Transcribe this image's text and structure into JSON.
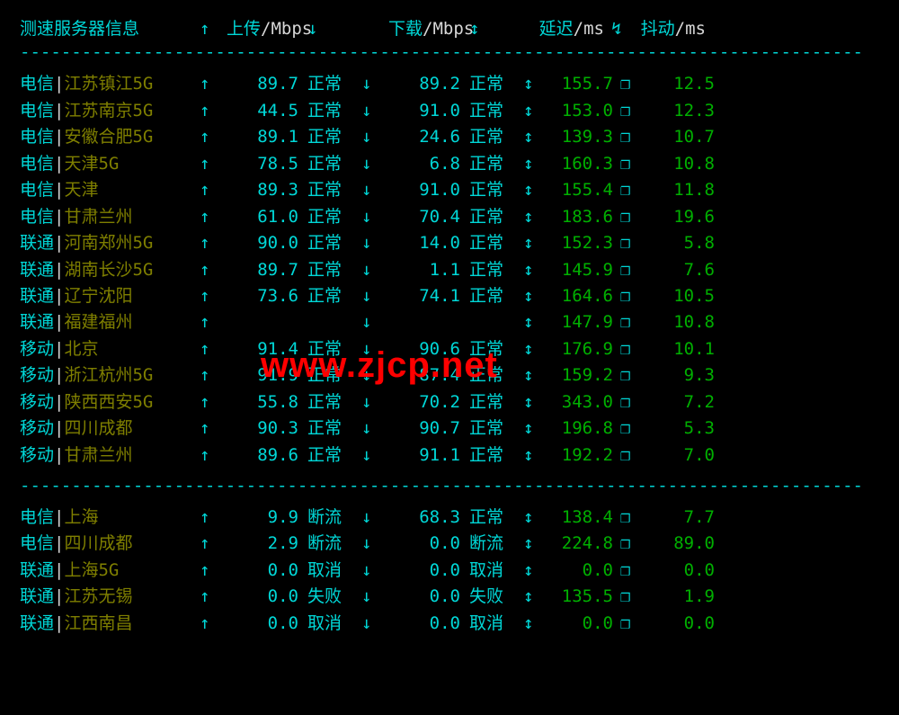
{
  "header": {
    "server_info": "测速服务器信息",
    "upload_label": "上传",
    "upload_unit": "/Mbps",
    "download_label": "下载",
    "download_unit": "/Mbps",
    "latency_label": "延迟",
    "latency_unit": "/ms",
    "jitter_label": "抖动",
    "jitter_unit": "/ms",
    "arrow_up": "↑",
    "arrow_down": "↓",
    "arrow_updown": "↕",
    "arrow_bolt": "↯"
  },
  "divider": "----------------------------------------------------------------------------------",
  "watermark": "www.zjcp.net",
  "rows_main": [
    {
      "isp": "电信",
      "loc": "江苏镇江5G",
      "up": "89.7",
      "ustatus": "正常",
      "down": "89.2",
      "dstatus": "正常",
      "lat": "155.7",
      "sym": "❐",
      "jit": "12.5",
      "gloss": true
    },
    {
      "isp": "电信",
      "loc": "江苏南京5G",
      "up": "44.5",
      "ustatus": "正常",
      "down": "91.0",
      "dstatus": "正常",
      "lat": "153.0",
      "sym": "❐",
      "jit": "12.3",
      "gloss": true
    },
    {
      "isp": "电信",
      "loc": "安徽合肥5G",
      "up": "89.1",
      "ustatus": "正常",
      "down": "24.6",
      "dstatus": "正常",
      "lat": "139.3",
      "sym": "❐",
      "jit": "10.7",
      "gloss": true
    },
    {
      "isp": "电信",
      "loc": "天津5G",
      "up": "78.5",
      "ustatus": "正常",
      "down": "6.8",
      "dstatus": "正常",
      "lat": "160.3",
      "sym": "❐",
      "jit": "10.8",
      "gloss": true
    },
    {
      "isp": "电信",
      "loc": "天津",
      "up": "89.3",
      "ustatus": "正常",
      "down": "91.0",
      "dstatus": "正常",
      "lat": "155.4",
      "sym": "❐",
      "jit": "11.8",
      "gloss": true
    },
    {
      "isp": "电信",
      "loc": "甘肃兰州",
      "up": "61.0",
      "ustatus": "正常",
      "down": "70.4",
      "dstatus": "正常",
      "lat": "183.6",
      "sym": "❐",
      "jit": "19.6",
      "gloss": true
    },
    {
      "isp": "联通",
      "loc": "河南郑州5G",
      "up": "90.0",
      "ustatus": "正常",
      "down": "14.0",
      "dstatus": "正常",
      "lat": "152.3",
      "sym": "❐",
      "jit": "5.8",
      "gloss": true
    },
    {
      "isp": "联通",
      "loc": "湖南长沙5G",
      "up": "89.7",
      "ustatus": "正常",
      "down": "1.1",
      "dstatus": "正常",
      "lat": "145.9",
      "sym": "❐",
      "jit": "7.6",
      "gloss": true
    },
    {
      "isp": "联通",
      "loc": "辽宁沈阳",
      "up": "73.6",
      "ustatus": "正常",
      "down": "74.1",
      "dstatus": "正常",
      "lat": "164.6",
      "sym": "❐",
      "jit": "10.5",
      "gloss": true
    },
    {
      "isp": "联通",
      "loc": "福建福州",
      "up": "",
      "ustatus": "",
      "down": "",
      "dstatus": "",
      "lat": "147.9",
      "sym": "❐",
      "jit": "10.8",
      "gloss": true
    },
    {
      "isp": "移动",
      "loc": "北京",
      "up": "91.4",
      "ustatus": "正常",
      "down": "90.6",
      "dstatus": "正常",
      "lat": "176.9",
      "sym": "❐",
      "jit": "10.1",
      "gloss": true
    },
    {
      "isp": "移动",
      "loc": "浙江杭州5G",
      "up": "91.9",
      "ustatus": "正常",
      "down": "87.4",
      "dstatus": "正常",
      "lat": "159.2",
      "sym": "❐",
      "jit": "9.3",
      "gloss": true
    },
    {
      "isp": "移动",
      "loc": "陕西西安5G",
      "up": "55.8",
      "ustatus": "正常",
      "down": "70.2",
      "dstatus": "正常",
      "lat": "343.0",
      "sym": "❐",
      "jit": "7.2",
      "gloss": true
    },
    {
      "isp": "移动",
      "loc": "四川成都",
      "up": "90.3",
      "ustatus": "正常",
      "down": "90.7",
      "dstatus": "正常",
      "lat": "196.8",
      "sym": "❐",
      "jit": "5.3",
      "gloss": true
    },
    {
      "isp": "移动",
      "loc": "甘肃兰州",
      "up": "89.6",
      "ustatus": "正常",
      "down": "91.1",
      "dstatus": "正常",
      "lat": "192.2",
      "sym": "❐",
      "jit": "7.0",
      "gloss": true
    }
  ],
  "rows_extra": [
    {
      "isp": "电信",
      "loc": "上海",
      "up": "9.9",
      "ustatus": "断流",
      "down": "68.3",
      "dstatus": "正常",
      "lat": "138.4",
      "sym": "❐",
      "jit": "7.7",
      "gloss": false,
      "dgloss": true
    },
    {
      "isp": "电信",
      "loc": "四川成都",
      "up": "2.9",
      "ustatus": "断流",
      "down": "0.0",
      "dstatus": "断流",
      "lat": "224.8",
      "sym": "❐",
      "jit": "89.0",
      "gloss": false
    },
    {
      "isp": "联通",
      "loc": "上海5G",
      "up": "0.0",
      "ustatus": "取消",
      "down": "0.0",
      "dstatus": "取消",
      "lat": "0.0",
      "sym": "❐",
      "jit": "0.0",
      "gloss": false
    },
    {
      "isp": "联通",
      "loc": "江苏无锡",
      "up": "0.0",
      "ustatus": "失败",
      "down": "0.0",
      "dstatus": "失败",
      "lat": "135.5",
      "sym": "❐",
      "jit": "1.9",
      "gloss": false
    },
    {
      "isp": "联通",
      "loc": "江西南昌",
      "up": "0.0",
      "ustatus": "取消",
      "down": "0.0",
      "dstatus": "取消",
      "lat": "0.0",
      "sym": "❐",
      "jit": "0.0",
      "gloss": false
    }
  ]
}
